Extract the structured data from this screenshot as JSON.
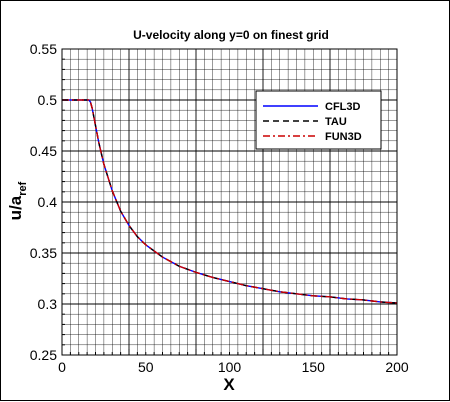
{
  "chart_data": {
    "type": "line",
    "title": "U-velocity along y=0 on finest grid",
    "xlabel": "X",
    "ylabel_main": "u/a",
    "ylabel_sub": "ref",
    "xlim": [
      0,
      200
    ],
    "ylim": [
      0.25,
      0.55
    ],
    "x_ticks": [
      0,
      50,
      100,
      150,
      200
    ],
    "y_ticks": [
      0.25,
      0.3,
      0.35,
      0.4,
      0.45,
      0.5,
      0.55
    ],
    "x_tick_labels": [
      "0",
      "50",
      "100",
      "150",
      "200"
    ],
    "y_tick_labels": [
      "0.25",
      "0.3",
      "0.35",
      "0.4",
      "0.45",
      "0.5",
      "0.55"
    ],
    "grid": true,
    "legend_position": "top-right",
    "x": [
      0,
      5,
      10,
      15,
      16,
      17,
      18,
      20,
      22,
      25,
      30,
      35,
      40,
      45,
      50,
      60,
      70,
      80,
      90,
      100,
      110,
      120,
      130,
      140,
      150,
      160,
      170,
      180,
      190,
      200
    ],
    "series": [
      {
        "name": "CFL3D",
        "color": "#0000ff",
        "dash": "solid",
        "values": [
          0.5,
          0.5,
          0.5,
          0.5,
          0.5,
          0.498,
          0.492,
          0.475,
          0.458,
          0.437,
          0.411,
          0.391,
          0.377,
          0.366,
          0.358,
          0.346,
          0.337,
          0.331,
          0.326,
          0.322,
          0.318,
          0.315,
          0.312,
          0.31,
          0.308,
          0.307,
          0.305,
          0.304,
          0.302,
          0.301
        ]
      },
      {
        "name": "TAU",
        "color": "#000000",
        "dash": "dashed",
        "values": [
          0.5,
          0.5,
          0.5,
          0.5,
          0.5,
          0.498,
          0.492,
          0.475,
          0.458,
          0.437,
          0.411,
          0.391,
          0.377,
          0.366,
          0.358,
          0.346,
          0.337,
          0.331,
          0.326,
          0.322,
          0.318,
          0.315,
          0.312,
          0.31,
          0.308,
          0.307,
          0.305,
          0.304,
          0.302,
          0.301
        ]
      },
      {
        "name": "FUN3D",
        "color": "#cc0000",
        "dash": "dashdot",
        "values": [
          0.5,
          0.5,
          0.5,
          0.5,
          0.5,
          0.498,
          0.492,
          0.475,
          0.458,
          0.437,
          0.411,
          0.391,
          0.377,
          0.366,
          0.358,
          0.346,
          0.337,
          0.331,
          0.326,
          0.322,
          0.318,
          0.315,
          0.312,
          0.31,
          0.308,
          0.307,
          0.305,
          0.304,
          0.302,
          0.301
        ]
      }
    ]
  }
}
